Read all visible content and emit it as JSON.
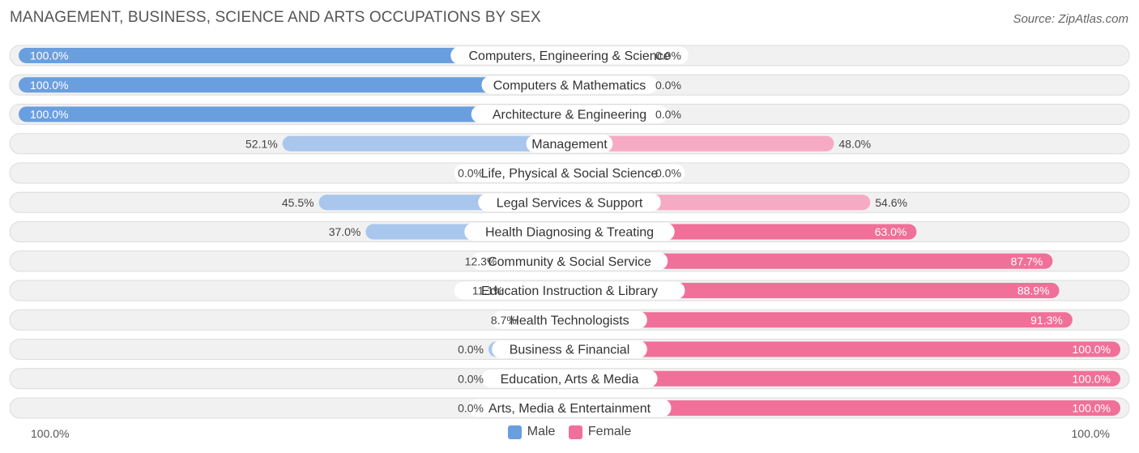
{
  "title": "MANAGEMENT, BUSINESS, SCIENCE AND ARTS OCCUPATIONS BY SEX",
  "source": "Source: ZipAtlas.com",
  "colors": {
    "male": "#6a9fdf",
    "male_light": "#a9c7ec",
    "female": "#f07099",
    "female_light": "#f7aac3"
  },
  "chart_data": {
    "type": "bar",
    "orientation": "horizontal-diverging",
    "categories": [
      "Computers, Engineering & Science",
      "Computers & Mathematics",
      "Architecture & Engineering",
      "Management",
      "Life, Physical & Social Science",
      "Legal Services & Support",
      "Health Diagnosing & Treating",
      "Community & Social Service",
      "Education Instruction & Library",
      "Health Technologists",
      "Business & Financial",
      "Education, Arts & Media",
      "Arts, Media & Entertainment"
    ],
    "series": [
      {
        "name": "Male",
        "values": [
          100.0,
          100.0,
          100.0,
          52.1,
          0.0,
          45.5,
          37.0,
          12.3,
          11.1,
          8.7,
          0.0,
          0.0,
          0.0
        ],
        "labels": [
          "100.0%",
          "100.0%",
          "100.0%",
          "52.1%",
          "0.0%",
          "45.5%",
          "37.0%",
          "12.3%",
          "11.1%",
          "8.7%",
          "0.0%",
          "0.0%",
          "0.0%"
        ]
      },
      {
        "name": "Female",
        "values": [
          0.0,
          0.0,
          0.0,
          48.0,
          0.0,
          54.6,
          63.0,
          87.7,
          88.9,
          91.3,
          100.0,
          100.0,
          100.0
        ],
        "labels": [
          "0.0%",
          "0.0%",
          "0.0%",
          "48.0%",
          "0.0%",
          "54.6%",
          "63.0%",
          "87.7%",
          "88.9%",
          "91.3%",
          "100.0%",
          "100.0%",
          "100.0%"
        ]
      }
    ],
    "xlim": [
      0,
      100
    ],
    "axis_left_label": "100.0%",
    "axis_right_label": "100.0%",
    "legend": [
      "Male",
      "Female"
    ],
    "legend_position": "bottom-center"
  }
}
